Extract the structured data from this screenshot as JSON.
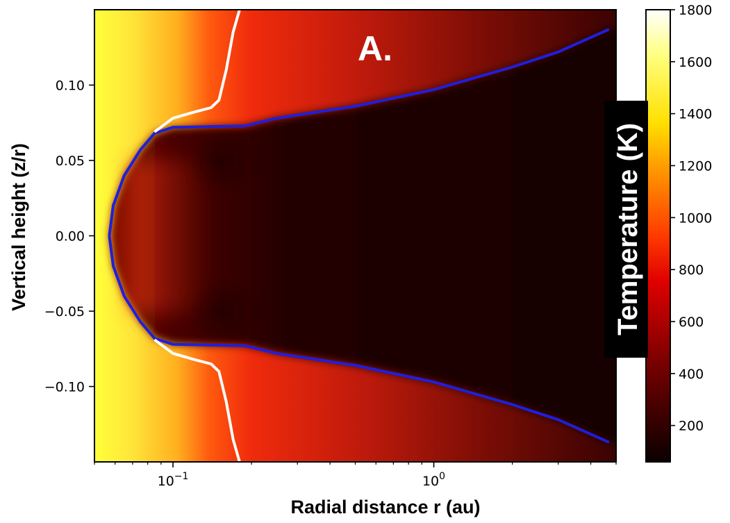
{
  "chart_data": {
    "type": "heatmap",
    "title": "",
    "panel_label": "A.",
    "xlabel": "Radial distance r (au)",
    "ylabel": "Vertical height (z/r)",
    "xscale": "log",
    "xlim": [
      0.05,
      5.0
    ],
    "ylim": [
      -0.15,
      0.15
    ],
    "x_major_ticks": [
      {
        "value": 0.1,
        "base": "10",
        "exp": "−1"
      },
      {
        "value": 1.0,
        "base": "10",
        "exp": "0"
      }
    ],
    "y_ticks": [
      {
        "value": 0.1,
        "label": "0.10"
      },
      {
        "value": 0.05,
        "label": "0.05"
      },
      {
        "value": 0.0,
        "label": "0.00"
      },
      {
        "value": -0.05,
        "label": "−0.05"
      },
      {
        "value": -0.1,
        "label": "−0.10"
      }
    ],
    "colorbar": {
      "label": "Temperature (K)",
      "colormap": "hot",
      "range": [
        60,
        1800
      ],
      "ticks": [
        {
          "value": 200,
          "label": "200"
        },
        {
          "value": 400,
          "label": "400"
        },
        {
          "value": 600,
          "label": "600"
        },
        {
          "value": 800,
          "label": "800"
        },
        {
          "value": 1000,
          "label": "1000"
        },
        {
          "value": 1200,
          "label": "1200"
        },
        {
          "value": 1400,
          "label": "1400"
        },
        {
          "value": 1600,
          "label": "1600"
        },
        {
          "value": 1800,
          "label": "1800"
        }
      ]
    },
    "contours": [
      {
        "color": "#1f1fdc",
        "branches": [
          {
            "points": [
              [
                0.057,
                0.0
              ],
              [
                0.059,
                0.02
              ],
              [
                0.065,
                0.04
              ],
              [
                0.075,
                0.057
              ],
              [
                0.085,
                0.068
              ],
              [
                0.1,
                0.072
              ],
              [
                0.19,
                0.073
              ],
              [
                0.25,
                0.078
              ],
              [
                0.5,
                0.086
              ],
              [
                1.0,
                0.097
              ],
              [
                2.0,
                0.112
              ],
              [
                3.0,
                0.122
              ],
              [
                4.7,
                0.137
              ]
            ]
          },
          {
            "points": [
              [
                0.057,
                0.0
              ],
              [
                0.059,
                -0.02
              ],
              [
                0.065,
                -0.04
              ],
              [
                0.075,
                -0.057
              ],
              [
                0.085,
                -0.068
              ],
              [
                0.1,
                -0.072
              ],
              [
                0.19,
                -0.073
              ],
              [
                0.25,
                -0.078
              ],
              [
                0.5,
                -0.086
              ],
              [
                1.0,
                -0.097
              ],
              [
                2.0,
                -0.112
              ],
              [
                3.0,
                -0.122
              ],
              [
                4.7,
                -0.137
              ]
            ]
          }
        ]
      },
      {
        "color": "#ffffff",
        "branches": [
          {
            "points": [
              [
                0.085,
                0.069
              ],
              [
                0.1,
                0.078
              ],
              [
                0.12,
                0.082
              ],
              [
                0.14,
                0.085
              ],
              [
                0.15,
                0.09
              ],
              [
                0.16,
                0.11
              ],
              [
                0.17,
                0.135
              ],
              [
                0.18,
                0.15
              ]
            ]
          },
          {
            "points": [
              [
                0.085,
                -0.069
              ],
              [
                0.1,
                -0.078
              ],
              [
                0.12,
                -0.082
              ],
              [
                0.14,
                -0.085
              ],
              [
                0.15,
                -0.09
              ],
              [
                0.16,
                -0.11
              ],
              [
                0.17,
                -0.135
              ],
              [
                0.18,
                -0.15
              ]
            ]
          }
        ]
      }
    ]
  }
}
